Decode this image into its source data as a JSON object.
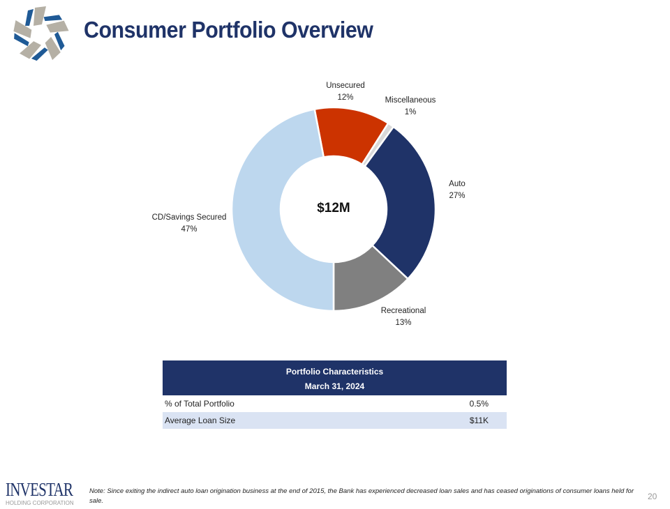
{
  "header": {
    "title": "Consumer Portfolio Overview"
  },
  "chart_data": {
    "type": "pie",
    "variant": "donut",
    "center_label": "$12M",
    "categories": [
      "Unsecured",
      "Miscellaneous",
      "Auto",
      "Recreational",
      "CD/Savings Secured"
    ],
    "values": [
      12,
      1,
      27,
      13,
      47
    ],
    "value_labels": [
      "12%",
      "1%",
      "27%",
      "13%",
      "47%"
    ],
    "colors": [
      "#cc3300",
      "#d9d9d9",
      "#1f3368",
      "#808080",
      "#bdd7ee"
    ]
  },
  "table": {
    "title": "Portfolio Characteristics",
    "date": "March 31, 2024",
    "rows": [
      {
        "label": "% of Total Portfolio",
        "value": "0.5%"
      },
      {
        "label": "Average Loan Size",
        "value": "$11K"
      }
    ]
  },
  "footer": {
    "brand": "INVESTAR",
    "brand_sub": "HOLDING CORPORATION",
    "note": "Note: Since exiting the indirect auto loan origination business at the end of 2015, the Bank has experienced decreased loan sales and has ceased originations of consumer loans held for sale.",
    "page": "20"
  }
}
